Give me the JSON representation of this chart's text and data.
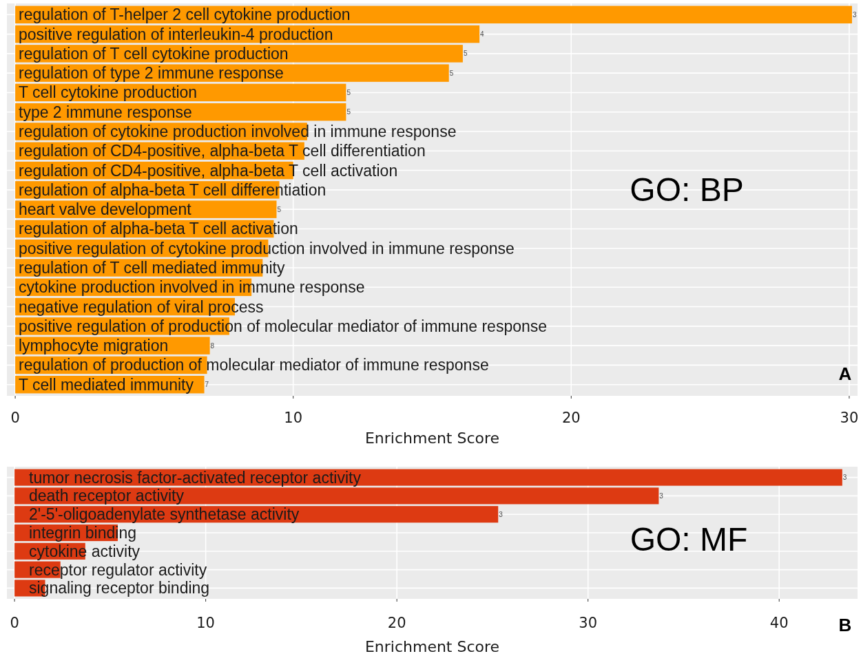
{
  "chart_data": [
    {
      "type": "bar",
      "orientation": "horizontal",
      "xlabel": "Enrichment Score",
      "categories": [
        "regulation of T-helper 2 cell cytokine production",
        "positive regulation of interleukin-4 production",
        "regulation of T cell cytokine production",
        "regulation of type 2 immune response",
        "T cell cytokine production",
        "type 2 immune response",
        "regulation of cytokine production involved in immune response",
        "regulation of CD4-positive, alpha-beta T cell differentiation",
        "regulation of CD4-positive, alpha-beta T cell activation",
        "regulation of alpha-beta T cell differentiation",
        "heart valve development",
        "regulation of alpha-beta T cell activation",
        "positive regulation of cytokine production involved in immune response",
        "regulation of T cell mediated immunity",
        "cytokine production involved in immune response",
        "negative regulation of viral process",
        "positive regulation of production of molecular mediator of immune response",
        "lymphocyte migration",
        "regulation of production of molecular mediator of immune response",
        "T cell mediated immunity"
      ],
      "values": [
        30.1,
        16.7,
        16.1,
        15.6,
        11.9,
        11.9,
        10.5,
        10.4,
        10.0,
        9.5,
        9.4,
        9.3,
        9.1,
        8.9,
        8.5,
        7.9,
        7.7,
        7.0,
        6.9,
        6.8
      ],
      "color": "#ff9900",
      "xlim": [
        -0.3,
        30.3
      ],
      "xticks": [
        0,
        10,
        20,
        30
      ],
      "grid": true,
      "annotations": [
        "GO: BP",
        "A",
        {
          "text": "3",
          "x": 30.1,
          "y": "regulation of T-helper 2 cell cytokine production"
        },
        {
          "text": "4",
          "x": 16.7,
          "y": "positive regulation of interleukin-4 production"
        },
        {
          "text": "5",
          "x": 16.1,
          "y": "regulation of T cell cytokine production"
        },
        {
          "text": "5",
          "x": 15.6,
          "y": "regulation of type 2 immune response"
        },
        {
          "text": "5",
          "x": 11.9,
          "y": "T cell cytokine production"
        },
        {
          "text": "5",
          "x": 11.9,
          "y": "type 2 immune response"
        },
        {
          "text": "5",
          "x": 9.4,
          "y": "heart valve development"
        },
        {
          "text": "8",
          "x": 7.0,
          "y": "lymphocyte migration"
        },
        {
          "text": "7",
          "x": 6.8,
          "y": "T cell mediated immunity"
        }
      ]
    },
    {
      "type": "bar",
      "orientation": "horizontal",
      "xlabel": "Enrichment Score",
      "categories": [
        "tumor necrosis factor-activated receptor activity",
        "death receptor activity",
        "2'-5'-oligoadenylate synthetase activity",
        "integrin binding",
        "cytokine activity",
        "receptor regulator activity",
        "signaling receptor binding"
      ],
      "values": [
        43.3,
        33.7,
        25.3,
        5.4,
        3.7,
        2.4,
        1.6
      ],
      "color": "#dd3a12",
      "xlim": [
        -0.4,
        44.1
      ],
      "xticks": [
        0,
        10,
        20,
        30,
        40
      ],
      "grid": true,
      "annotations": [
        "GO: MF",
        "B",
        {
          "text": "3",
          "x": 43.3,
          "y": "tumor necrosis factor-activated receptor activity"
        },
        {
          "text": "3",
          "x": 33.7,
          "y": "death receptor activity"
        },
        {
          "text": "3",
          "x": 25.3,
          "y": "2'-5'-oligoadenylate synthetase activity"
        }
      ]
    }
  ]
}
